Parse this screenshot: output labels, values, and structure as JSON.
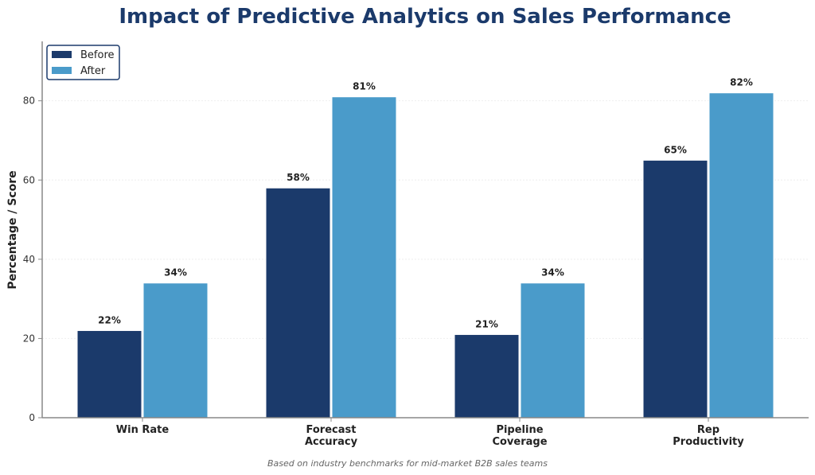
{
  "chart_data": {
    "type": "bar",
    "title": "Impact of Predictive Analytics on Sales Performance",
    "xlabel": "",
    "ylabel": "Percentage / Score",
    "ylim": [
      0,
      95
    ],
    "yticks": [
      0,
      20,
      40,
      60,
      80
    ],
    "grid": true,
    "legend_position": "top-left",
    "categories": [
      [
        "Win Rate"
      ],
      [
        "Forecast",
        "Accuracy"
      ],
      [
        "Pipeline",
        "Coverage"
      ],
      [
        "Rep",
        "Productivity"
      ]
    ],
    "series": [
      {
        "name": "Before",
        "color": "#1b3a6b",
        "values": [
          22,
          58,
          21,
          65
        ],
        "labels": [
          "22%",
          "58%",
          "21%",
          "65%"
        ]
      },
      {
        "name": "After",
        "color": "#4a9bca",
        "values": [
          34,
          81,
          34,
          82
        ],
        "labels": [
          "34%",
          "81%",
          "34%",
          "82%"
        ]
      }
    ],
    "footnote": "Based on industry benchmarks for mid-market B2B sales teams"
  }
}
